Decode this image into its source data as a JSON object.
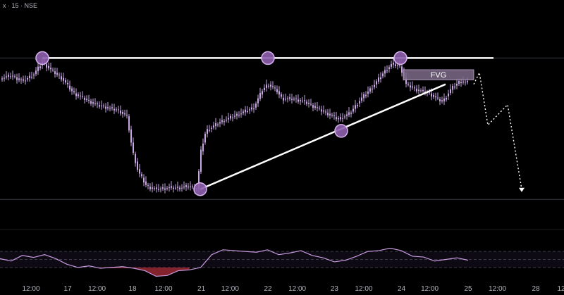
{
  "header": {
    "symbol_text": "x · 15 · NSE"
  },
  "colors": {
    "background": "#000000",
    "candle": "#c9a6e3",
    "drawing": "#ffffff",
    "marker_fill": "#8e5fae",
    "marker_stroke": "#d9b3f0",
    "fvg_fill": "#7d6a88",
    "rsi_line": "#c89be0",
    "rsi_oversold_fill": "#a12a37",
    "rsi_band": "#0d0a14",
    "axis_text": "#b2b5be",
    "price_line": "#3a3d45"
  },
  "chart_data": {
    "type": "candlestick",
    "title": "",
    "annotations": {
      "fvg_label": "FVG"
    },
    "x_axis_labels": [
      "12:00",
      "17",
      "12:00",
      "18",
      "12:00",
      "21",
      "12:00",
      "22",
      "12:00",
      "23",
      "12:00",
      "24",
      "12:00",
      "25",
      "12:00",
      "28",
      "12"
    ],
    "price_range": [
      0,
      100
    ],
    "price_path": [
      [
        0,
        80
      ],
      [
        0.02,
        82
      ],
      [
        0.04,
        78
      ],
      [
        0.06,
        83
      ],
      [
        0.075,
        91
      ],
      [
        0.09,
        86
      ],
      [
        0.11,
        80
      ],
      [
        0.13,
        70
      ],
      [
        0.15,
        66
      ],
      [
        0.17,
        62
      ],
      [
        0.19,
        60
      ],
      [
        0.21,
        58
      ],
      [
        0.225,
        54
      ],
      [
        0.235,
        30
      ],
      [
        0.245,
        16
      ],
      [
        0.26,
        6
      ],
      [
        0.275,
        4
      ],
      [
        0.3,
        5
      ],
      [
        0.32,
        5
      ],
      [
        0.335,
        6
      ],
      [
        0.35,
        4
      ],
      [
        0.355,
        28
      ],
      [
        0.365,
        44
      ],
      [
        0.39,
        50
      ],
      [
        0.42,
        55
      ],
      [
        0.45,
        60
      ],
      [
        0.465,
        72
      ],
      [
        0.475,
        76
      ],
      [
        0.49,
        72
      ],
      [
        0.5,
        66
      ],
      [
        0.52,
        66
      ],
      [
        0.54,
        64
      ],
      [
        0.56,
        60
      ],
      [
        0.58,
        56
      ],
      [
        0.6,
        52
      ],
      [
        0.62,
        56
      ],
      [
        0.64,
        66
      ],
      [
        0.66,
        74
      ],
      [
        0.68,
        84
      ],
      [
        0.695,
        90
      ],
      [
        0.71,
        88
      ],
      [
        0.72,
        76
      ],
      [
        0.74,
        72
      ],
      [
        0.76,
        70
      ],
      [
        0.775,
        66
      ],
      [
        0.785,
        64
      ],
      [
        0.8,
        73
      ],
      [
        0.815,
        78
      ],
      [
        0.83,
        77
      ]
    ],
    "trendlines": [
      {
        "name": "resistance",
        "from": [
          0.075,
          94
        ],
        "to": [
          0.875,
          94
        ]
      },
      {
        "name": "rising-support",
        "from": [
          0.355,
          4
        ],
        "to": [
          0.79,
          76
        ]
      }
    ],
    "touch_points": [
      {
        "name": "touch-1",
        "x": 0.075,
        "y": 94
      },
      {
        "name": "touch-2",
        "x": 0.475,
        "y": 94
      },
      {
        "name": "touch-3",
        "x": 0.71,
        "y": 94
      },
      {
        "name": "touch-4",
        "x": 0.605,
        "y": 44
      },
      {
        "name": "touch-5",
        "x": 0.355,
        "y": 4
      }
    ],
    "fvg_zone": {
      "x0": 0.715,
      "x1": 0.84,
      "y0": 79,
      "y1": 86
    },
    "projection_path": [
      [
        0.84,
        76
      ],
      [
        0.85,
        84
      ],
      [
        0.865,
        48
      ],
      [
        0.9,
        62
      ],
      [
        0.925,
        4
      ]
    ],
    "rsi": {
      "range": [
        0,
        100
      ],
      "levels": [
        70,
        50,
        30
      ],
      "values": [
        52,
        46,
        60,
        55,
        62,
        52,
        38,
        30,
        34,
        28,
        30,
        32,
        28,
        22,
        8,
        10,
        22,
        24,
        30,
        62,
        74,
        72,
        70,
        68,
        74,
        62,
        66,
        72,
        60,
        54,
        44,
        48,
        58,
        70,
        72,
        78,
        72,
        58,
        56,
        46,
        50,
        54,
        48
      ]
    }
  }
}
